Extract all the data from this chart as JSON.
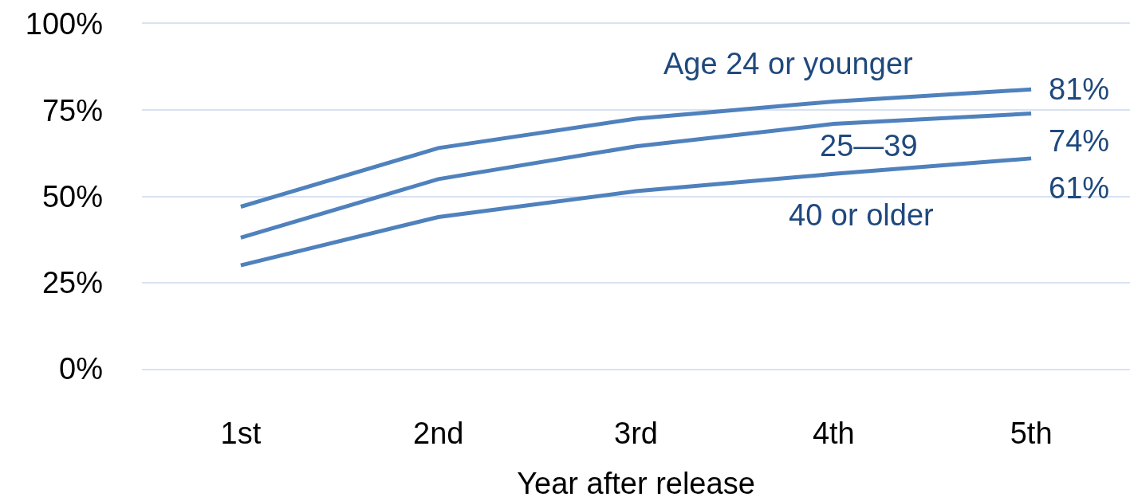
{
  "chart_data": {
    "type": "line",
    "xlabel": "Year after release",
    "categories": [
      "1st",
      "2nd",
      "3rd",
      "4th",
      "5th"
    ],
    "ylim": [
      0,
      100
    ],
    "yticks": [
      {
        "value": 0,
        "label": "0%"
      },
      {
        "value": 25,
        "label": "25%"
      },
      {
        "value": 50,
        "label": "50%"
      },
      {
        "value": 75,
        "label": "75%"
      },
      {
        "value": 100,
        "label": "100%"
      }
    ],
    "grid": "y",
    "legend": false,
    "series": [
      {
        "name": "Age 24 or younger",
        "color": "#4f81bd",
        "values": [
          47,
          64,
          72.5,
          77.5,
          81
        ],
        "value_labels": [
          null,
          null,
          null,
          null,
          "81%"
        ]
      },
      {
        "name": "25—39",
        "color": "#4f81bd",
        "values": [
          38,
          55,
          64.5,
          71,
          74
        ],
        "value_labels": [
          null,
          null,
          null,
          null,
          "74%"
        ]
      },
      {
        "name": "40 or older",
        "color": "#4f81bd",
        "values": [
          30,
          44,
          51.5,
          56.5,
          61
        ],
        "value_labels": [
          null,
          null,
          null,
          null,
          "61%"
        ]
      }
    ]
  }
}
